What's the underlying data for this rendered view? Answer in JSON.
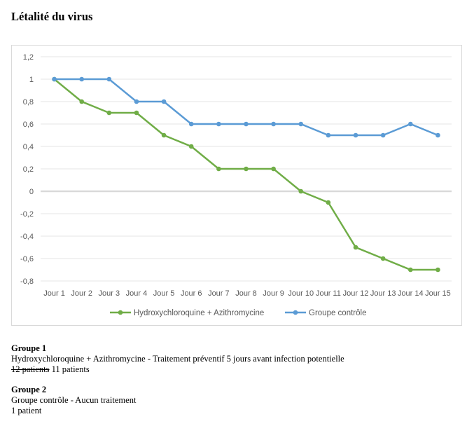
{
  "page": {
    "title": "Létalité du virus"
  },
  "chart_data": {
    "type": "line",
    "title": "",
    "xlabel": "",
    "ylabel": "",
    "categories": [
      "Jour 1",
      "Jour 2",
      "Jour 3",
      "Jour 4",
      "Jour 5",
      "Jour 6",
      "Jour 7",
      "Jour 8",
      "Jour 9",
      "Jour 10",
      "Jour 11",
      "Jour 12",
      "Jour 13",
      "Jour 14",
      "Jour 15"
    ],
    "ylim": [
      -0.8,
      1.2
    ],
    "yticks": [
      1.2,
      1,
      0.8,
      0.6,
      0.4,
      0.2,
      0,
      -0.2,
      -0.4,
      -0.6,
      -0.8
    ],
    "ytick_labels": [
      "1,2",
      "1",
      "0,8",
      "0,6",
      "0,4",
      "0,2",
      "0",
      "-0,2",
      "-0,4",
      "-0,6",
      "-0,8"
    ],
    "grid": true,
    "legend_position": "bottom",
    "series": [
      {
        "name": "Hydroxychloroquine + Azithromycine",
        "color": "#70ad47",
        "values": [
          1,
          0.8,
          0.7,
          0.7,
          0.5,
          0.4,
          0.2,
          0.2,
          0.2,
          0,
          -0.1,
          -0.5,
          -0.6,
          -0.7,
          -0.7
        ]
      },
      {
        "name": "Groupe contrôle",
        "color": "#5b9bd5",
        "values": [
          1,
          1,
          1,
          0.8,
          0.8,
          0.6,
          0.6,
          0.6,
          0.6,
          0.6,
          0.5,
          0.5,
          0.5,
          0.6,
          0.5
        ]
      }
    ]
  },
  "groups": [
    {
      "heading": "Groupe 1",
      "description": "Hydroxychloroquine + Azithromycine - Traitement préventif 5 jours avant infection potentielle",
      "struck": "12 patients",
      "patients": " 11 patients"
    },
    {
      "heading": "Groupe 2",
      "description": "Groupe contrôle - Aucun traitement",
      "patients": "1 patient"
    }
  ]
}
